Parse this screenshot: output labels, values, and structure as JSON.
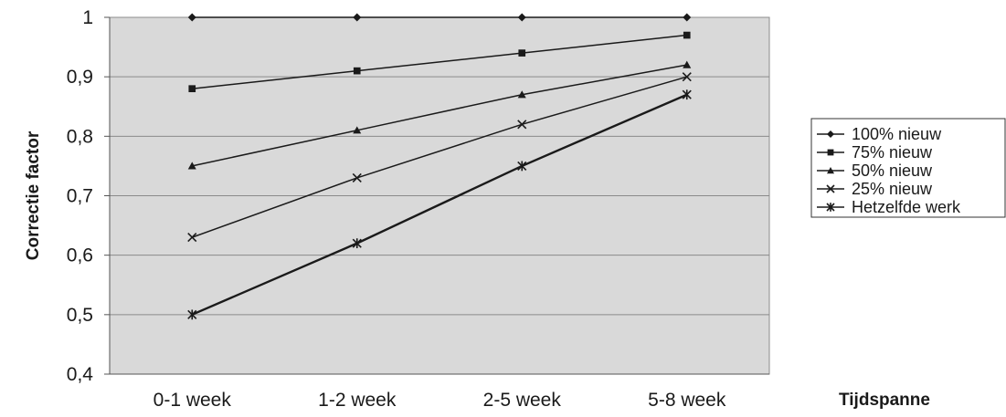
{
  "chart_data": {
    "type": "line",
    "categories": [
      "0-1 week",
      "1-2 week",
      "2-5 week",
      "5-8 week"
    ],
    "xlabel": "Tijdspanne",
    "ylabel": "Correctie factor",
    "ylim": [
      0.4,
      1.0
    ],
    "yticks": [
      0.4,
      0.5,
      0.6,
      0.7,
      0.8,
      0.9,
      1.0
    ],
    "ytick_labels": [
      "0,4",
      "0,5",
      "0,6",
      "0,7",
      "0,8",
      "0,9",
      "1"
    ],
    "grid": "horizontal",
    "plot_background": "#d9d9d9",
    "line_color": "#1a1a1a",
    "legend_position": "right",
    "series": [
      {
        "name": "100% nieuw",
        "marker": "diamond",
        "values": [
          1.0,
          1.0,
          1.0,
          1.0
        ]
      },
      {
        "name": "75% nieuw",
        "marker": "square",
        "values": [
          0.88,
          0.91,
          0.94,
          0.97
        ]
      },
      {
        "name": "50% nieuw",
        "marker": "triangle",
        "values": [
          0.75,
          0.81,
          0.87,
          0.92
        ]
      },
      {
        "name": "25% nieuw",
        "marker": "x",
        "values": [
          0.63,
          0.73,
          0.82,
          0.9
        ]
      },
      {
        "name": "Hetzelfde werk",
        "marker": "asterisk",
        "values": [
          0.5,
          0.62,
          0.75,
          0.87
        ]
      }
    ]
  }
}
